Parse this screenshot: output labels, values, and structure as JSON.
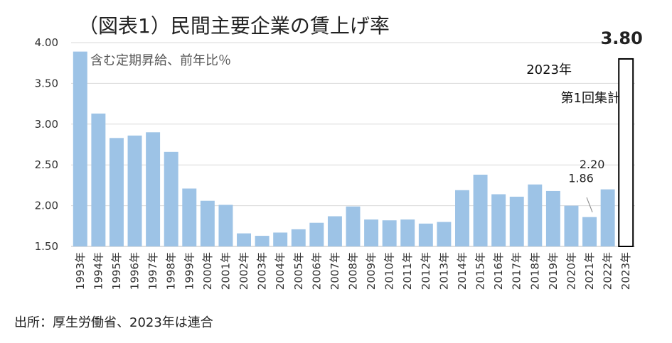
{
  "chart_data": {
    "type": "bar",
    "title": "（図表1）民間主要企業の賃上げ率",
    "note": "含む定期昇給、前年比％",
    "categories": [
      "1993年",
      "1994年",
      "1995年",
      "1996年",
      "1997年",
      "1998年",
      "1999年",
      "2000年",
      "2001年",
      "2002年",
      "2003年",
      "2004年",
      "2005年",
      "2006年",
      "2007年",
      "2008年",
      "2009年",
      "2010年",
      "2011年",
      "2012年",
      "2013年",
      "2014年",
      "2015年",
      "2016年",
      "2017年",
      "2018年",
      "2019年",
      "2020年",
      "2021年",
      "2022年",
      "2023年"
    ],
    "values": [
      3.89,
      3.13,
      2.83,
      2.86,
      2.9,
      2.66,
      2.21,
      2.06,
      2.01,
      1.66,
      1.63,
      1.67,
      1.71,
      1.79,
      1.87,
      1.99,
      1.83,
      1.82,
      1.83,
      1.78,
      1.8,
      2.19,
      2.38,
      2.14,
      2.11,
      2.26,
      2.18,
      2.0,
      1.86,
      2.2,
      3.8
    ],
    "ylim": [
      1.5,
      4.0
    ],
    "yticks": [
      "1.50",
      "2.00",
      "2.50",
      "3.00",
      "3.50",
      "4.00"
    ],
    "grid": true,
    "bar_color": "#9dc3e6",
    "highlight_bar_color": "#ffffff",
    "highlight_bar_border": "#000000",
    "data_labels": {
      "2020年": "",
      "2021年": "1.86",
      "2022年": "2.20",
      "2023年": "3.80"
    },
    "annotation_2023": [
      "2023年",
      "第1回集計"
    ],
    "source": "出所：厚生労働省、2023年は連合"
  }
}
